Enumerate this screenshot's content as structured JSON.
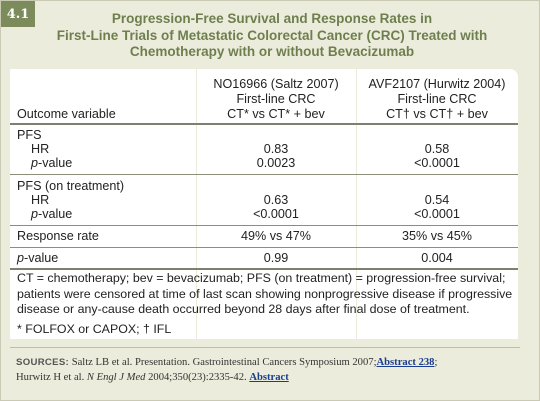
{
  "badge": "4.1",
  "title_lines": [
    "Progression-Free Survival and Response Rates in",
    "First-Line Trials of Metastatic Colorectal Cancer (CRC) Treated with",
    "Chemotherapy with or without Bevacizumab"
  ],
  "table": {
    "outcome_header": "Outcome variable",
    "columns": [
      {
        "study": "NO16966 (Saltz 2007)",
        "line": "First-line CRC",
        "comparison": "CT* vs CT* + bev"
      },
      {
        "study": "AVF2107 (Hurwitz 2004)",
        "line": "First-line CRC",
        "comparison": "CT† vs CT† + bev"
      }
    ],
    "pfs": {
      "label": "PFS",
      "hr_label": "HR",
      "p_label": "p",
      "p_suffix": "-value",
      "hr_values": [
        "0.83",
        "0.58"
      ],
      "p_values": [
        "0.0023",
        "<0.0001"
      ]
    },
    "pfs_on_treatment": {
      "label": "PFS (on treatment)",
      "hr_label": "HR",
      "p_label": "p",
      "p_suffix": "-value",
      "hr_values": [
        "0.63",
        "0.54"
      ],
      "p_values": [
        "<0.0001",
        "<0.0001"
      ]
    },
    "response_rate": {
      "label": "Response rate",
      "values": [
        "49% vs 47%",
        "35% vs 45%"
      ]
    },
    "p_value_row": {
      "label_italic": "p",
      "label_suffix": "-value",
      "values": [
        "0.99",
        "0.004"
      ]
    }
  },
  "footnotes": {
    "abbrev_lines": [
      "CT = chemotherapy; bev = bevacizumab; PFS (on treatment) = progression-free survival;",
      "patients were censored at time of last scan showing nonprogressive disease if progressive",
      "disease or any-cause death occurred beyond 28 days after final dose of treatment."
    ],
    "regimens": "* FOLFOX or CAPOX; † IFL"
  },
  "sources": {
    "label": "SOURCES:",
    "line1_text": " Saltz LB et al. Presentation. Gastrointestinal Cancers Symposium 2007;",
    "line1_link": "Abstract 238",
    "line1_end": ";",
    "line2_author": "Hurwitz H et al. ",
    "line2_journal": "N Engl J Med",
    "line2_text": " 2004;350(23):2335-42. ",
    "line2_link": "Abstract"
  },
  "colors": {
    "frame_bg": "#ececdc",
    "title": "#6e7f4e",
    "badge_bg": "#7b8b5b",
    "link": "#1a3d8f"
  }
}
